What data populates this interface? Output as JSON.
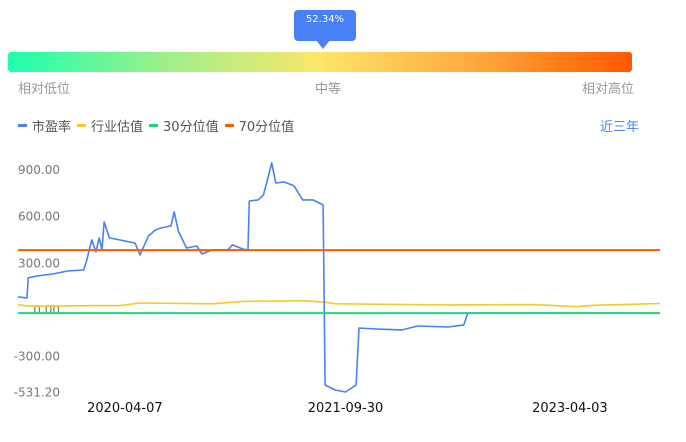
{
  "gauge": {
    "percentile_label": "52.34%",
    "percentile": 52.34,
    "labels": {
      "low": "相对低位",
      "mid": "中等",
      "high": "相对高位"
    },
    "gradient_colors": [
      "#1effad",
      "#fde66a",
      "#ff5800"
    ]
  },
  "range_selector": "近三年",
  "chart_data": {
    "type": "line",
    "xlim": [
      "2019-07-20",
      "2023-11-10"
    ],
    "ylim": [
      -531.2,
      990
    ],
    "y_ticks": [
      "900.00",
      "600.00",
      "300.00",
      "0.00",
      "-300.00",
      "-531.20"
    ],
    "y_tick_values": [
      900,
      600,
      300,
      0,
      -300,
      -531.2
    ],
    "x_ticks": [
      "2020-04-07",
      "2021-09-30",
      "2023-04-03"
    ],
    "grid": false,
    "legend_placement": "top-left",
    "series": [
      {
        "name": "市盈率",
        "color": "#4a80f5",
        "points": [
          [
            "2019-07-20",
            84
          ],
          [
            "2019-08-11",
            77
          ],
          [
            "2019-08-14",
            206
          ],
          [
            "2019-09-05",
            219
          ],
          [
            "2019-10-13",
            231
          ],
          [
            "2019-11-20",
            251
          ],
          [
            "2019-12-28",
            257
          ],
          [
            "2020-01-04",
            315
          ],
          [
            "2020-01-17",
            450
          ],
          [
            "2020-01-27",
            373
          ],
          [
            "2020-02-04",
            463
          ],
          [
            "2020-02-11",
            386
          ],
          [
            "2020-02-16",
            566
          ],
          [
            "2020-02-29",
            463
          ],
          [
            "2020-03-25",
            450
          ],
          [
            "2020-05-02",
            430
          ],
          [
            "2020-05-14",
            353
          ],
          [
            "2020-06-04",
            476
          ],
          [
            "2020-06-21",
            514
          ],
          [
            "2020-07-04",
            527
          ],
          [
            "2020-07-29",
            540
          ],
          [
            "2020-08-06",
            630
          ],
          [
            "2020-08-16",
            508
          ],
          [
            "2020-09-05",
            398
          ],
          [
            "2020-09-30",
            411
          ],
          [
            "2020-10-13",
            360
          ],
          [
            "2020-11-07",
            386
          ],
          [
            "2020-12-15",
            386
          ],
          [
            "2020-12-27",
            418
          ],
          [
            "2021-01-21",
            392
          ],
          [
            "2021-02-03",
            386
          ],
          [
            "2021-02-06",
            700
          ],
          [
            "2021-02-28",
            707
          ],
          [
            "2021-03-13",
            740
          ],
          [
            "2021-03-25",
            861
          ],
          [
            "2021-04-02",
            945
          ],
          [
            "2021-04-12",
            816
          ],
          [
            "2021-05-02",
            823
          ],
          [
            "2021-05-27",
            797
          ],
          [
            "2021-06-17",
            707
          ],
          [
            "2021-07-12",
            707
          ],
          [
            "2021-08-06",
            675
          ],
          [
            "2021-08-11",
            -482
          ],
          [
            "2021-09-05",
            -514
          ],
          [
            "2021-09-30",
            -527
          ],
          [
            "2021-10-26",
            -482
          ],
          [
            "2021-11-02",
            -116
          ],
          [
            "2021-12-15",
            -122
          ],
          [
            "2022-02-16",
            -128
          ],
          [
            "2022-03-26",
            -103
          ],
          [
            "2022-06-09",
            -109
          ],
          [
            "2022-07-17",
            -96
          ],
          [
            "2022-07-27",
            -19
          ],
          [
            "2023-11-10",
            -19
          ]
        ]
      },
      {
        "name": "行业估值",
        "color": "#f9c922",
        "points": [
          [
            "2019-07-20",
            35
          ],
          [
            "2019-08-14",
            25
          ],
          [
            "2020-03-25",
            28
          ],
          [
            "2020-05-14",
            45
          ],
          [
            "2020-11-07",
            40
          ],
          [
            "2021-01-21",
            55
          ],
          [
            "2021-06-17",
            60
          ],
          [
            "2021-08-11",
            50
          ],
          [
            "2021-09-05",
            40
          ],
          [
            "2022-06-09",
            33
          ],
          [
            "2023-01-01",
            35
          ],
          [
            "2023-04-20",
            22
          ],
          [
            "2023-06-01",
            30
          ],
          [
            "2023-11-10",
            42
          ]
        ]
      },
      {
        "name": "30分位值",
        "color": "#1ed67a",
        "points": [
          [
            "2019-07-20",
            -20
          ],
          [
            "2023-11-10",
            -20
          ]
        ]
      },
      {
        "name": "70分位值",
        "color": "#ff5a00",
        "points": [
          [
            "2019-07-20",
            385
          ],
          [
            "2023-11-10",
            385
          ]
        ]
      }
    ]
  }
}
